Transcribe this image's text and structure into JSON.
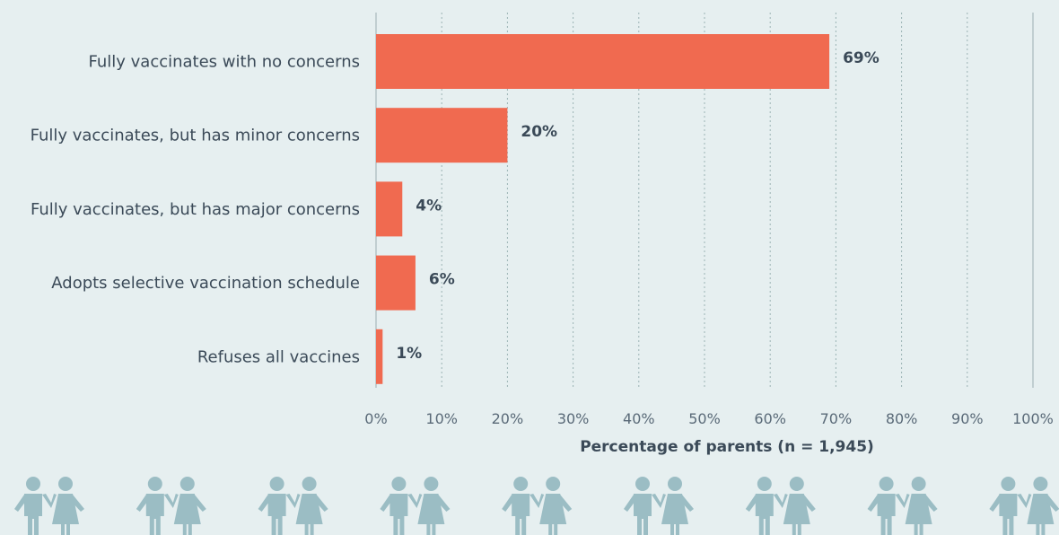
{
  "chart_data": {
    "type": "bar",
    "orientation": "horizontal",
    "categories": [
      "Fully vaccinates with no concerns",
      "Fully vaccinates, but has minor concerns",
      "Fully vaccinates, but has major concerns",
      "Adopts selective vaccination schedule",
      "Refuses all vaccines"
    ],
    "values": [
      69,
      20,
      4,
      6,
      1
    ],
    "value_labels": [
      "69%",
      "20%",
      "4%",
      "6%",
      "1%"
    ],
    "xlim": [
      0,
      100
    ],
    "xticks": [
      0,
      10,
      20,
      30,
      40,
      50,
      60,
      70,
      80,
      90,
      100
    ],
    "xtick_labels": [
      "0%",
      "10%",
      "20%",
      "30%",
      "40%",
      "50%",
      "60%",
      "70%",
      "80%",
      "90%",
      "100%"
    ],
    "xlabel": "Percentage of parents (n = 1,945)",
    "grid": true,
    "colors": {
      "bar": "#f06a50",
      "background": "#e6eff0",
      "figures": "#9bbdc4"
    }
  },
  "decoration": {
    "icon": "parent-couple-icon",
    "count": 9
  }
}
